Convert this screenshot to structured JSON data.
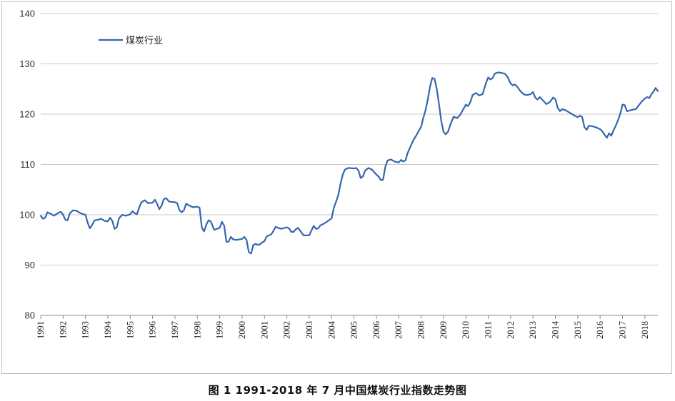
{
  "caption": "图 1    1991-2018 年 7 月中国煤炭行业指数走势图",
  "chart_data": {
    "type": "line",
    "title": "",
    "xlabel": "",
    "ylabel": "",
    "ylim": [
      80,
      140
    ],
    "yticks": [
      "140",
      "130",
      "120",
      "110",
      "100",
      "90",
      "80"
    ],
    "xlim": [
      1991,
      2018.58
    ],
    "xticks": [
      "1991",
      "1992",
      "1993",
      "1994",
      "1995",
      "1996",
      "1997",
      "1998",
      "1999",
      "2000",
      "2001",
      "2002",
      "2003",
      "2004",
      "2005",
      "2006",
      "2007",
      "2008",
      "2009",
      "2010",
      "2011",
      "2012",
      "2013",
      "2014",
      "2015",
      "2016",
      "2017",
      "2018"
    ],
    "grid": "horizontal",
    "legend_position": "top-left",
    "series": [
      {
        "name": "煤炭行业",
        "color": "#3566ad",
        "points": [
          [
            1991.0,
            99.8
          ],
          [
            1991.1,
            99.2
          ],
          [
            1991.2,
            99.4
          ],
          [
            1991.3,
            100.5
          ],
          [
            1991.45,
            100.2
          ],
          [
            1991.6,
            99.8
          ],
          [
            1991.75,
            100.3
          ],
          [
            1991.9,
            100.6
          ],
          [
            1992.0,
            100.0
          ],
          [
            1992.1,
            99.0
          ],
          [
            1992.2,
            98.9
          ],
          [
            1992.3,
            100.3
          ],
          [
            1992.45,
            100.9
          ],
          [
            1992.6,
            100.8
          ],
          [
            1992.75,
            100.4
          ],
          [
            1992.9,
            100.1
          ],
          [
            1993.0,
            100.0
          ],
          [
            1993.1,
            98.4
          ],
          [
            1993.2,
            97.3
          ],
          [
            1993.3,
            98.0
          ],
          [
            1993.4,
            98.9
          ],
          [
            1993.55,
            99.0
          ],
          [
            1993.7,
            99.2
          ],
          [
            1993.85,
            98.8
          ],
          [
            1994.0,
            98.7
          ],
          [
            1994.1,
            99.4
          ],
          [
            1994.2,
            98.8
          ],
          [
            1994.3,
            97.2
          ],
          [
            1994.4,
            97.5
          ],
          [
            1994.5,
            99.3
          ],
          [
            1994.65,
            100.0
          ],
          [
            1994.8,
            99.8
          ],
          [
            1995.0,
            100.1
          ],
          [
            1995.1,
            100.7
          ],
          [
            1995.2,
            100.3
          ],
          [
            1995.3,
            100.1
          ],
          [
            1995.4,
            101.4
          ],
          [
            1995.5,
            102.5
          ],
          [
            1995.65,
            102.9
          ],
          [
            1995.8,
            102.3
          ],
          [
            1996.0,
            102.4
          ],
          [
            1996.1,
            103.0
          ],
          [
            1996.2,
            102.2
          ],
          [
            1996.3,
            101.1
          ],
          [
            1996.4,
            101.8
          ],
          [
            1996.5,
            103.1
          ],
          [
            1996.6,
            103.3
          ],
          [
            1996.75,
            102.6
          ],
          [
            1997.0,
            102.5
          ],
          [
            1997.1,
            102.3
          ],
          [
            1997.2,
            100.9
          ],
          [
            1997.3,
            100.5
          ],
          [
            1997.4,
            100.9
          ],
          [
            1997.5,
            102.2
          ],
          [
            1997.65,
            101.8
          ],
          [
            1997.8,
            101.5
          ],
          [
            1998.0,
            101.6
          ],
          [
            1998.1,
            101.4
          ],
          [
            1998.2,
            97.4
          ],
          [
            1998.3,
            96.7
          ],
          [
            1998.4,
            98.0
          ],
          [
            1998.5,
            98.9
          ],
          [
            1998.6,
            98.7
          ],
          [
            1998.75,
            97.0
          ],
          [
            1999.0,
            97.4
          ],
          [
            1999.1,
            98.6
          ],
          [
            1999.2,
            97.8
          ],
          [
            1999.3,
            94.6
          ],
          [
            1999.4,
            94.7
          ],
          [
            1999.5,
            95.6
          ],
          [
            1999.6,
            95.1
          ],
          [
            1999.75,
            95.0
          ],
          [
            2000.0,
            95.2
          ],
          [
            2000.1,
            95.6
          ],
          [
            2000.2,
            95.0
          ],
          [
            2000.3,
            92.6
          ],
          [
            2000.4,
            92.3
          ],
          [
            2000.5,
            94.0
          ],
          [
            2000.6,
            94.2
          ],
          [
            2000.75,
            94.0
          ],
          [
            2001.0,
            94.8
          ],
          [
            2001.1,
            95.7
          ],
          [
            2001.2,
            95.9
          ],
          [
            2001.3,
            96.1
          ],
          [
            2001.4,
            96.8
          ],
          [
            2001.5,
            97.6
          ],
          [
            2001.6,
            97.4
          ],
          [
            2001.75,
            97.2
          ],
          [
            2002.0,
            97.5
          ],
          [
            2002.1,
            97.3
          ],
          [
            2002.2,
            96.6
          ],
          [
            2002.3,
            96.6
          ],
          [
            2002.4,
            97.1
          ],
          [
            2002.5,
            97.4
          ],
          [
            2002.6,
            96.8
          ],
          [
            2002.75,
            95.9
          ],
          [
            2003.0,
            95.9
          ],
          [
            2003.1,
            96.9
          ],
          [
            2003.2,
            97.8
          ],
          [
            2003.3,
            97.2
          ],
          [
            2003.4,
            97.3
          ],
          [
            2003.5,
            97.9
          ],
          [
            2003.6,
            98.1
          ],
          [
            2003.75,
            98.5
          ],
          [
            2004.0,
            99.3
          ],
          [
            2004.1,
            101.4
          ],
          [
            2004.2,
            102.6
          ],
          [
            2004.3,
            103.9
          ],
          [
            2004.4,
            106.2
          ],
          [
            2004.5,
            108.0
          ],
          [
            2004.6,
            109.0
          ],
          [
            2004.75,
            109.3
          ],
          [
            2005.0,
            109.2
          ],
          [
            2005.1,
            109.3
          ],
          [
            2005.2,
            108.8
          ],
          [
            2005.3,
            107.3
          ],
          [
            2005.4,
            107.6
          ],
          [
            2005.5,
            108.8
          ],
          [
            2005.65,
            109.3
          ],
          [
            2005.8,
            109.0
          ],
          [
            2006.0,
            108.0
          ],
          [
            2006.1,
            107.6
          ],
          [
            2006.2,
            106.9
          ],
          [
            2006.3,
            107.0
          ],
          [
            2006.4,
            109.5
          ],
          [
            2006.5,
            110.8
          ],
          [
            2006.65,
            111.0
          ],
          [
            2006.8,
            110.6
          ],
          [
            2007.0,
            110.4
          ],
          [
            2007.1,
            110.9
          ],
          [
            2007.2,
            110.6
          ],
          [
            2007.3,
            110.8
          ],
          [
            2007.4,
            112.3
          ],
          [
            2007.5,
            113.3
          ],
          [
            2007.65,
            114.8
          ],
          [
            2007.8,
            115.9
          ],
          [
            2008.0,
            117.5
          ],
          [
            2008.1,
            119.3
          ],
          [
            2008.2,
            120.8
          ],
          [
            2008.3,
            123.0
          ],
          [
            2008.4,
            125.5
          ],
          [
            2008.5,
            127.2
          ],
          [
            2008.6,
            127.0
          ],
          [
            2008.7,
            125.0
          ],
          [
            2008.8,
            122.0
          ],
          [
            2008.9,
            118.6
          ],
          [
            2009.0,
            116.5
          ],
          [
            2009.1,
            116.0
          ],
          [
            2009.2,
            116.5
          ],
          [
            2009.3,
            117.8
          ],
          [
            2009.45,
            119.5
          ],
          [
            2009.6,
            119.2
          ],
          [
            2009.75,
            119.9
          ],
          [
            2010.0,
            121.9
          ],
          [
            2010.1,
            121.6
          ],
          [
            2010.2,
            122.4
          ],
          [
            2010.3,
            123.8
          ],
          [
            2010.45,
            124.2
          ],
          [
            2010.6,
            123.7
          ],
          [
            2010.75,
            124.0
          ],
          [
            2010.9,
            126.2
          ],
          [
            2011.0,
            127.3
          ],
          [
            2011.1,
            126.9
          ],
          [
            2011.2,
            127.2
          ],
          [
            2011.3,
            128.1
          ],
          [
            2011.45,
            128.3
          ],
          [
            2011.6,
            128.2
          ],
          [
            2011.75,
            128.0
          ],
          [
            2011.85,
            127.5
          ],
          [
            2012.0,
            126.1
          ],
          [
            2012.1,
            125.7
          ],
          [
            2012.2,
            125.9
          ],
          [
            2012.3,
            125.4
          ],
          [
            2012.45,
            124.5
          ],
          [
            2012.6,
            123.9
          ],
          [
            2012.75,
            123.8
          ],
          [
            2012.9,
            124.0
          ],
          [
            2013.0,
            124.4
          ],
          [
            2013.1,
            123.3
          ],
          [
            2013.2,
            122.9
          ],
          [
            2013.3,
            123.4
          ],
          [
            2013.45,
            122.7
          ],
          [
            2013.6,
            122.0
          ],
          [
            2013.75,
            122.4
          ],
          [
            2013.9,
            123.3
          ],
          [
            2014.0,
            123.0
          ],
          [
            2014.1,
            121.3
          ],
          [
            2014.2,
            120.6
          ],
          [
            2014.3,
            121.0
          ],
          [
            2014.45,
            120.8
          ],
          [
            2014.6,
            120.4
          ],
          [
            2014.75,
            120.0
          ],
          [
            2014.9,
            119.6
          ],
          [
            2015.0,
            119.4
          ],
          [
            2015.1,
            119.7
          ],
          [
            2015.2,
            119.4
          ],
          [
            2015.3,
            117.4
          ],
          [
            2015.4,
            116.9
          ],
          [
            2015.5,
            117.7
          ],
          [
            2015.65,
            117.6
          ],
          [
            2015.8,
            117.4
          ],
          [
            2016.0,
            117.0
          ],
          [
            2016.1,
            116.6
          ],
          [
            2016.2,
            115.9
          ],
          [
            2016.3,
            115.3
          ],
          [
            2016.4,
            116.2
          ],
          [
            2016.5,
            115.7
          ],
          [
            2016.6,
            116.8
          ],
          [
            2016.7,
            117.7
          ],
          [
            2016.8,
            118.8
          ],
          [
            2016.9,
            120.1
          ],
          [
            2017.0,
            121.9
          ],
          [
            2017.1,
            121.8
          ],
          [
            2017.2,
            120.6
          ],
          [
            2017.3,
            120.7
          ],
          [
            2017.45,
            120.9
          ],
          [
            2017.6,
            121.0
          ],
          [
            2017.75,
            121.9
          ],
          [
            2017.9,
            122.7
          ],
          [
            2018.0,
            123.1
          ],
          [
            2018.1,
            123.4
          ],
          [
            2018.2,
            123.2
          ],
          [
            2018.3,
            124.0
          ],
          [
            2018.4,
            124.6
          ],
          [
            2018.48,
            125.2
          ],
          [
            2018.58,
            124.6
          ]
        ]
      }
    ]
  }
}
